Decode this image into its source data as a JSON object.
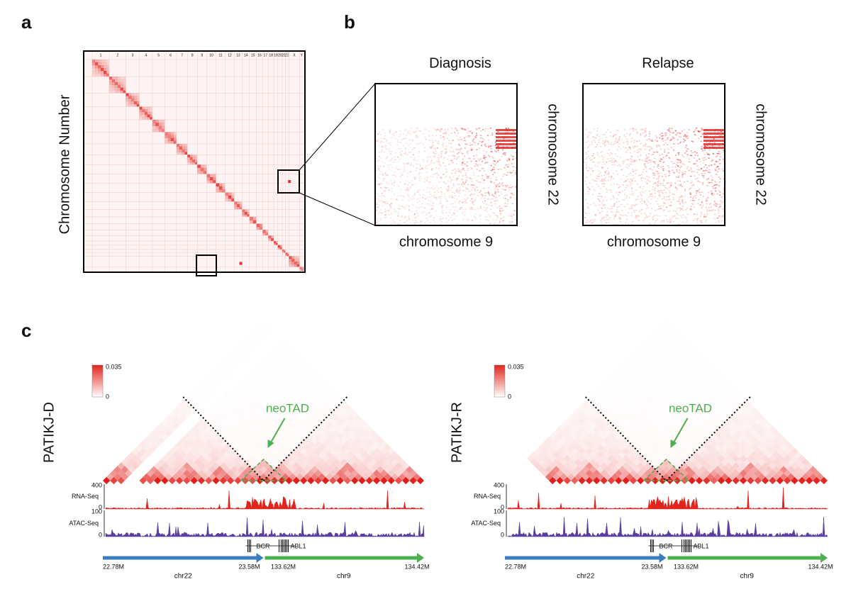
{
  "panel_a": {
    "label": "a",
    "y_axis_label": "Chromosome Number",
    "chromosomes": [
      "1",
      "2",
      "3",
      "4",
      "5",
      "6",
      "7",
      "8",
      "9",
      "10",
      "11",
      "12",
      "13",
      "14",
      "15",
      "16",
      "17",
      "18",
      "19",
      "20",
      "21",
      "22",
      "X",
      "Y"
    ]
  },
  "panel_b": {
    "label": "b",
    "maps": [
      {
        "title": "Diagnosis",
        "x_label": "chromosome 9",
        "y_label": "chromosome 22"
      },
      {
        "title": "Relapse",
        "x_label": "chromosome 9",
        "y_label": "chromosome 22"
      }
    ]
  },
  "panel_c": {
    "label": "c",
    "samples": [
      {
        "name": "PATIKJ-D",
        "colorbar_max": 0.035,
        "colorbar_min": 0,
        "annotation": "neoTAD",
        "tracks": [
          {
            "name": "RNA-Seq",
            "max": 400,
            "min": 0
          },
          {
            "name": "ATAC-Seq",
            "max": 100,
            "min": 0
          }
        ],
        "genes": [
          "BCR",
          "ABL1"
        ],
        "coordinates": [
          "22.78M",
          "23.58M",
          "133.62M",
          "134.42M"
        ],
        "chromosomes": [
          "chr22",
          "chr9"
        ]
      },
      {
        "name": "PATIKJ-R",
        "colorbar_max": 0.035,
        "colorbar_min": 0,
        "annotation": "neoTAD",
        "tracks": [
          {
            "name": "RNA-Seq",
            "max": 400,
            "min": 0
          },
          {
            "name": "ATAC-Seq",
            "max": 100,
            "min": 0
          }
        ],
        "genes": [
          "BCR",
          "ABL1"
        ],
        "coordinates": [
          "22.78M",
          "23.58M",
          "133.62M",
          "134.42M"
        ],
        "chromosomes": [
          "chr22",
          "chr9"
        ]
      }
    ]
  }
}
